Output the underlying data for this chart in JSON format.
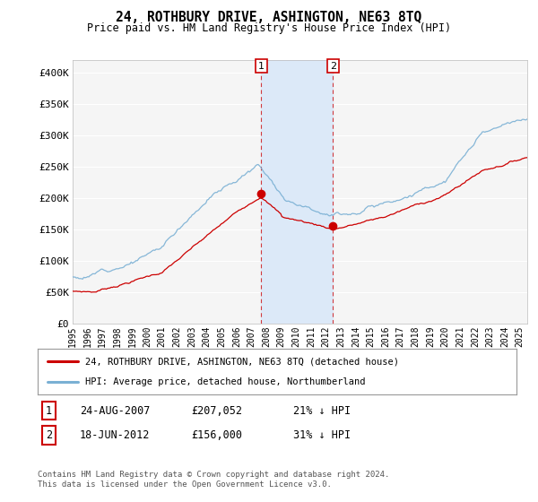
{
  "title": "24, ROTHBURY DRIVE, ASHINGTON, NE63 8TQ",
  "subtitle": "Price paid vs. HM Land Registry's House Price Index (HPI)",
  "ylabel_ticks": [
    "£0",
    "£50K",
    "£100K",
    "£150K",
    "£200K",
    "£250K",
    "£300K",
    "£350K",
    "£400K"
  ],
  "ytick_values": [
    0,
    50000,
    100000,
    150000,
    200000,
    250000,
    300000,
    350000,
    400000
  ],
  "ylim": [
    0,
    420000
  ],
  "xlim_start": 1995.0,
  "xlim_end": 2025.5,
  "sale1": {
    "date": 2007.648,
    "price": 207052,
    "label": "1"
  },
  "sale2": {
    "date": 2012.463,
    "price": 156000,
    "label": "2"
  },
  "shade_color": "#dce9f8",
  "sale_line_color": "#cc0000",
  "hpi_line_color": "#7ab0d4",
  "legend1": "24, ROTHBURY DRIVE, ASHINGTON, NE63 8TQ (detached house)",
  "legend2": "HPI: Average price, detached house, Northumberland",
  "table_row1": [
    "1",
    "24-AUG-2007",
    "£207,052",
    "21% ↓ HPI"
  ],
  "table_row2": [
    "2",
    "18-JUN-2012",
    "£156,000",
    "31% ↓ HPI"
  ],
  "footnote": "Contains HM Land Registry data © Crown copyright and database right 2024.\nThis data is licensed under the Open Government Licence v3.0.",
  "background_color": "#ffffff",
  "plot_bg_color": "#f5f5f5"
}
